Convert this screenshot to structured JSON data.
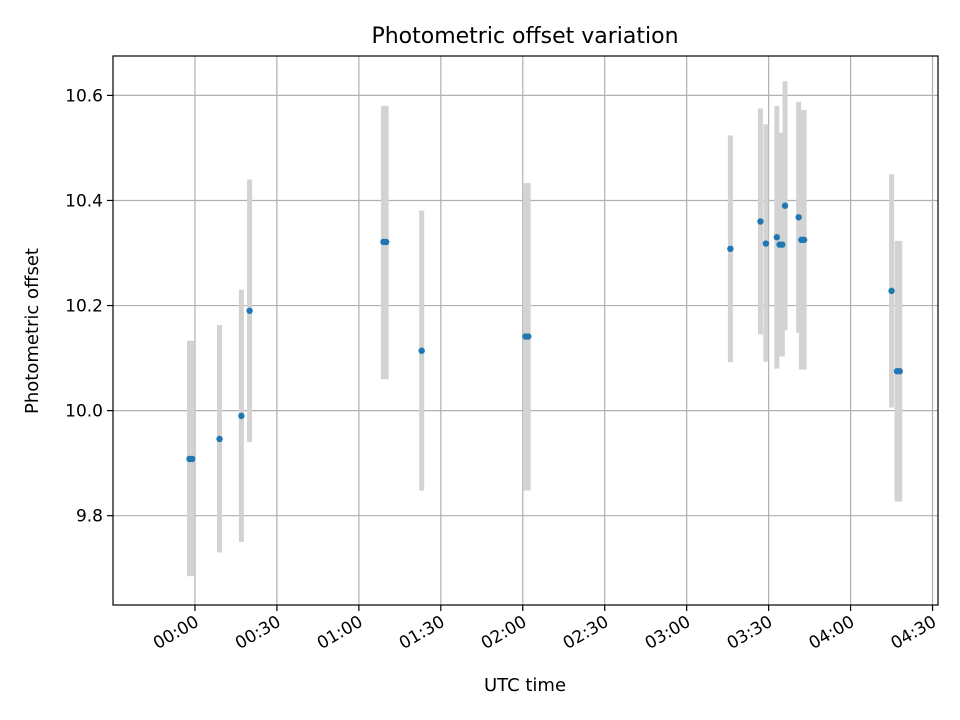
{
  "chart_data": {
    "type": "scatter",
    "title": "Photometric offset variation",
    "xlabel": "UTC time",
    "ylabel": "Photometric offset",
    "x_axis": "time",
    "xlim": [
      "23:30",
      "04:32"
    ],
    "ylim": [
      9.63,
      10.675
    ],
    "x_ticks": [
      "00:00",
      "00:30",
      "01:00",
      "01:30",
      "02:00",
      "02:30",
      "03:00",
      "03:30",
      "04:00",
      "04:30"
    ],
    "y_ticks": [
      9.8,
      10.0,
      10.2,
      10.4,
      10.6
    ],
    "y_tick_labels": [
      "9.8",
      "10.0",
      "10.2",
      "10.4",
      "10.6"
    ],
    "grid": true,
    "legend": "none",
    "colors": {
      "points": "#1f77b4",
      "error_bars": "#d3d3d3",
      "grid": "#b0b0b0"
    },
    "points": [
      {
        "x": "23:58",
        "y": 9.908,
        "yerr": [
          9.685,
          10.133
        ]
      },
      {
        "x": "23:59",
        "y": 9.908,
        "yerr": [
          9.685,
          10.133
        ]
      },
      {
        "x": "00:09",
        "y": 9.946,
        "yerr": [
          9.73,
          10.163
        ]
      },
      {
        "x": "00:17",
        "y": 9.99,
        "yerr": [
          9.75,
          10.23
        ]
      },
      {
        "x": "00:20",
        "y": 10.19,
        "yerr": [
          9.94,
          10.44
        ]
      },
      {
        "x": "01:09",
        "y": 10.321,
        "yerr": [
          10.06,
          10.58
        ]
      },
      {
        "x": "01:10",
        "y": 10.321,
        "yerr": [
          10.06,
          10.58
        ]
      },
      {
        "x": "01:23",
        "y": 10.114,
        "yerr": [
          9.848,
          10.381
        ]
      },
      {
        "x": "02:01",
        "y": 10.141,
        "yerr": [
          9.848,
          10.433
        ]
      },
      {
        "x": "02:02",
        "y": 10.141,
        "yerr": [
          9.848,
          10.433
        ]
      },
      {
        "x": "03:16",
        "y": 10.308,
        "yerr": [
          10.092,
          10.524
        ]
      },
      {
        "x": "03:27",
        "y": 10.36,
        "yerr": [
          10.145,
          10.575
        ]
      },
      {
        "x": "03:29",
        "y": 10.318,
        "yerr": [
          10.093,
          10.545
        ]
      },
      {
        "x": "03:33",
        "y": 10.33,
        "yerr": [
          10.08,
          10.58
        ]
      },
      {
        "x": "03:34",
        "y": 10.316,
        "yerr": [
          10.103,
          10.529
        ]
      },
      {
        "x": "03:35",
        "y": 10.316,
        "yerr": [
          10.103,
          10.529
        ]
      },
      {
        "x": "03:36",
        "y": 10.39,
        "yerr": [
          10.153,
          10.627
        ]
      },
      {
        "x": "03:41",
        "y": 10.368,
        "yerr": [
          10.148,
          10.588
        ]
      },
      {
        "x": "03:42",
        "y": 10.325,
        "yerr": [
          10.078,
          10.572
        ]
      },
      {
        "x": "03:43",
        "y": 10.325,
        "yerr": [
          10.078,
          10.572
        ]
      },
      {
        "x": "04:15",
        "y": 10.228,
        "yerr": [
          10.006,
          10.45
        ]
      },
      {
        "x": "04:17",
        "y": 10.075,
        "yerr": [
          9.827,
          10.323
        ]
      },
      {
        "x": "04:18",
        "y": 10.075,
        "yerr": [
          9.827,
          10.323
        ]
      }
    ]
  }
}
